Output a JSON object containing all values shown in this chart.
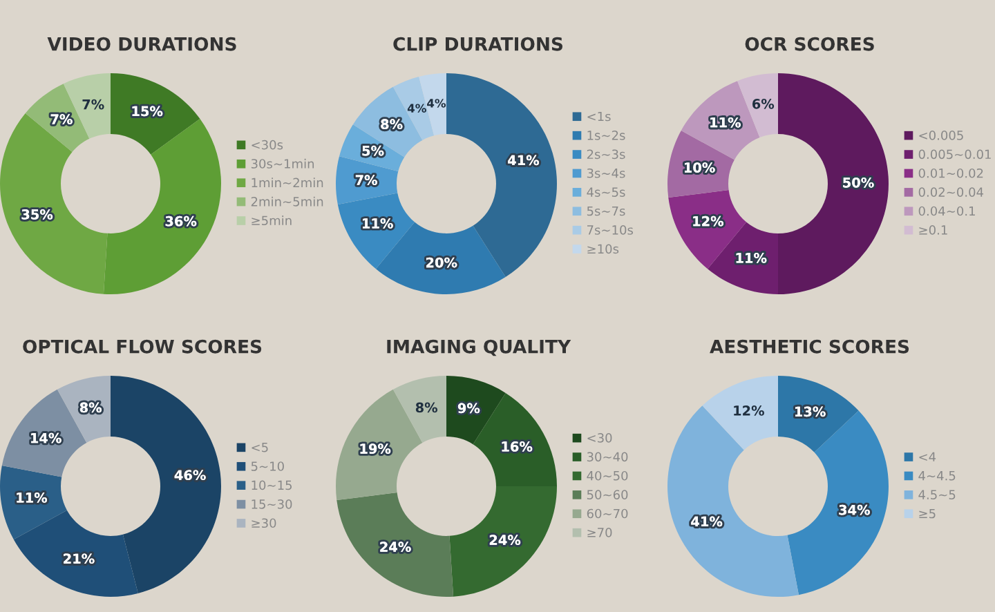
{
  "chart_data": [
    {
      "type": "donut",
      "title": "VIDEO DURATIONS",
      "categories": [
        "<30s",
        "30s~1min",
        "1min~2min",
        "2min~5min",
        "≥5min"
      ],
      "values": [
        15,
        36,
        35,
        7,
        7
      ],
      "colors": [
        "#3f7a25",
        "#5e9e35",
        "#6fa844",
        "#93bb77",
        "#b8cfa8"
      ],
      "value_labels": [
        "15%",
        "36%",
        "35%",
        "7%",
        "7%"
      ],
      "legend": "right"
    },
    {
      "type": "donut",
      "title": "CLIP DURATIONS",
      "categories": [
        "<1s",
        "1s~2s",
        "2s~3s",
        "3s~4s",
        "4s~5s",
        "5s~7s",
        "7s~10s",
        "≥10s"
      ],
      "values": [
        41,
        20,
        11,
        7,
        5,
        8,
        4,
        4
      ],
      "colors": [
        "#2e6a94",
        "#2f7bb0",
        "#3a8bc2",
        "#4f9bd0",
        "#6aaedb",
        "#8dbde0",
        "#a9cbe6",
        "#c3d8ec"
      ],
      "value_labels": [
        "41%",
        "20%",
        "11%",
        "7%",
        "5%",
        "8%",
        "4%",
        "4%"
      ],
      "legend": "right"
    },
    {
      "type": "donut",
      "title": "OCR SCORES",
      "categories": [
        "<0.005",
        "0.005~0.01",
        "0.01~0.02",
        "0.02~0.04",
        "0.04~0.1",
        "≥0.1"
      ],
      "values": [
        50,
        11,
        12,
        10,
        11,
        6
      ],
      "colors": [
        "#5e1a5e",
        "#6e1f6e",
        "#8a2e87",
        "#a36aa3",
        "#bd98bd",
        "#d2bcd2"
      ],
      "value_labels": [
        "50%",
        "11%",
        "12%",
        "10%",
        "11%",
        "6%"
      ],
      "legend": "right"
    },
    {
      "type": "donut",
      "title": "OPTICAL FLOW SCORES",
      "categories": [
        "<5",
        "5~10",
        "10~15",
        "15~30",
        "≥30"
      ],
      "values": [
        46,
        21,
        11,
        14,
        8
      ],
      "colors": [
        "#1b4466",
        "#1f4f78",
        "#2a5f88",
        "#7d8fa3",
        "#aab4c0"
      ],
      "value_labels": [
        "46%",
        "21%",
        "11%",
        "14%",
        "8%"
      ],
      "legend": "right"
    },
    {
      "type": "donut",
      "title": "IMAGING QUALITY",
      "categories": [
        "<30",
        "30~40",
        "40~50",
        "50~60",
        "60~70",
        "≥70"
      ],
      "values": [
        9,
        16,
        24,
        24,
        19,
        8
      ],
      "colors": [
        "#1e4a1e",
        "#2a5e28",
        "#346a30",
        "#5b7d58",
        "#96a98f",
        "#b3bfae"
      ],
      "value_labels": [
        "9%",
        "16%",
        "24%",
        "24%",
        "19%",
        "8%"
      ],
      "legend": "right"
    },
    {
      "type": "donut",
      "title": "AESTHETIC SCORES",
      "categories": [
        "<4",
        "4~4.5",
        "4.5~5",
        "≥5"
      ],
      "values": [
        13,
        34,
        41,
        12
      ],
      "colors": [
        "#2d77a8",
        "#3a8bc2",
        "#7fb3dc",
        "#b8d2ea"
      ],
      "value_labels": [
        "13%",
        "34%",
        "41%",
        "12%"
      ],
      "legend": "right"
    }
  ]
}
